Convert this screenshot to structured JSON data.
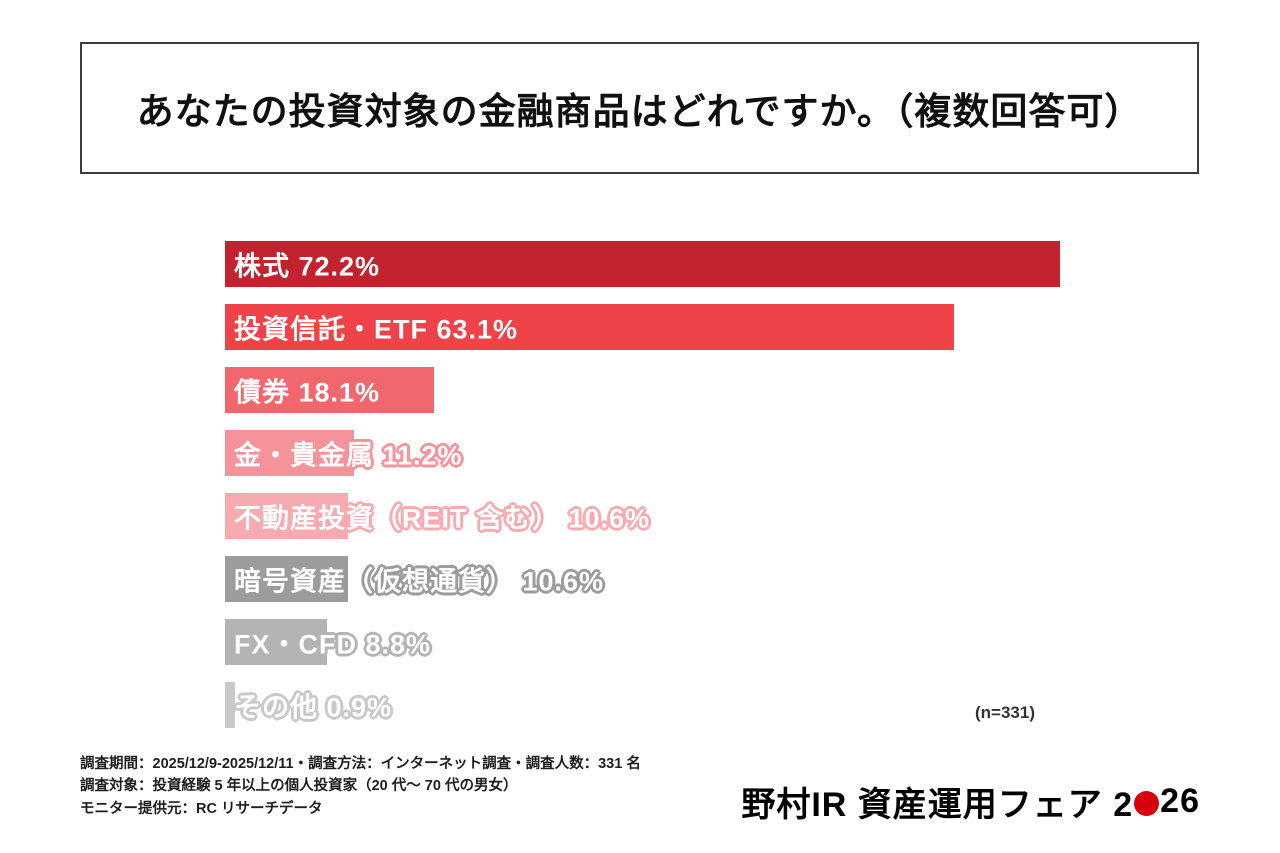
{
  "title": "あなたの投資対象の金融商品はどれですか。（複数回答可）",
  "chart_data": {
    "type": "bar",
    "orientation": "horizontal",
    "title": "あなたの投資対象の金融商品はどれですか。（複数回答可）",
    "categories": [
      "株式",
      "投資信託・ETF",
      "債券",
      "金・貴金属",
      "不動産投資（REIT 含む）",
      "暗号資産（仮想通貨）",
      "FX・CFD",
      "その他"
    ],
    "values": [
      72.2,
      63.1,
      18.1,
      11.2,
      10.6,
      10.6,
      8.8,
      0.9
    ],
    "unit": "%",
    "xlim": [
      0,
      100
    ],
    "bar_colors": [
      "#c3232e",
      "#ef4249",
      "#f2666d",
      "#f5939a",
      "#f7abb1",
      "#9c9c9c",
      "#b4b4b4",
      "#c9c9c9"
    ],
    "grid": false,
    "legend": false,
    "n_label": "(n=331)"
  },
  "n_label": "(n=331)",
  "footnotes": [
    "調査期間：2025/12/9-2025/12/11・調査方法：インターネット調査・調査人数：331 名",
    "調査対象：投資経験 5 年以上の個人投資家（20 代〜 70 代の男女）",
    "モニター提供元：RC リサーチデータ"
  ],
  "logo": {
    "prefix": "野村IR 資産運用フェア 2",
    "suffix": "26",
    "dot_color": "#d7000f"
  },
  "colors": {
    "accent_red": "#c3232e",
    "background": "#ffffff"
  }
}
